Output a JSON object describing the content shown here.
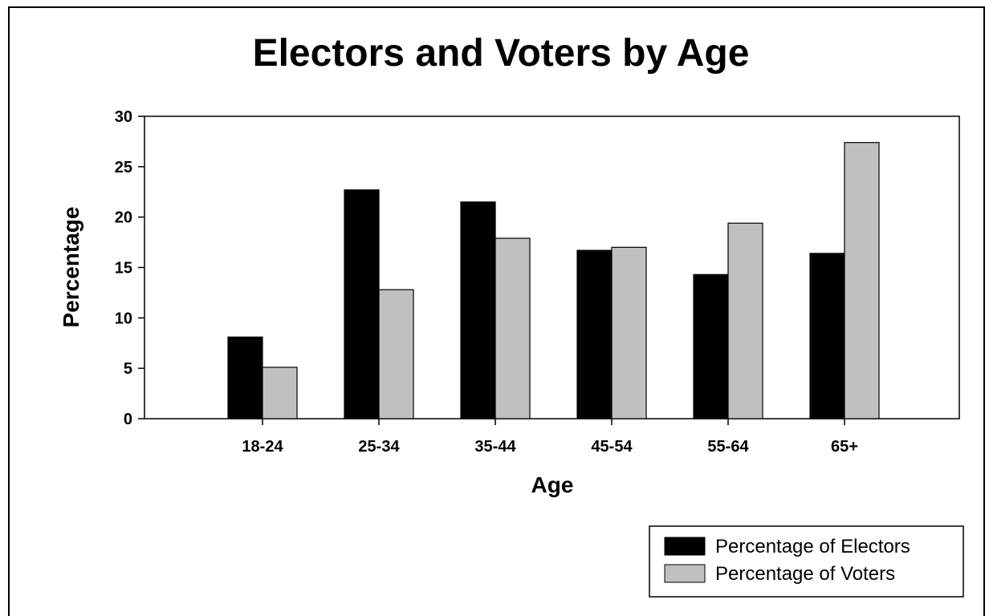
{
  "chart_data": {
    "type": "bar",
    "title": "Electors and Voters by Age",
    "xlabel": "Age",
    "ylabel": "Percentage",
    "categories": [
      "18-24",
      "25-34",
      "35-44",
      "45-54",
      "55-64",
      "65+"
    ],
    "ylim": [
      0,
      30
    ],
    "yticks": [
      "0",
      "5",
      "10",
      "15",
      "20",
      "25",
      "30"
    ],
    "grid": false,
    "legend_position": "bottom-right",
    "series": [
      {
        "name": "Percentage of Electors",
        "color": "#000000",
        "values": [
          8.1,
          22.7,
          21.5,
          16.7,
          14.3,
          16.4
        ]
      },
      {
        "name": "Percentage of Voters",
        "color": "#c0c0c0",
        "values": [
          5.1,
          12.8,
          17.9,
          17.0,
          19.4,
          27.4
        ]
      }
    ]
  }
}
